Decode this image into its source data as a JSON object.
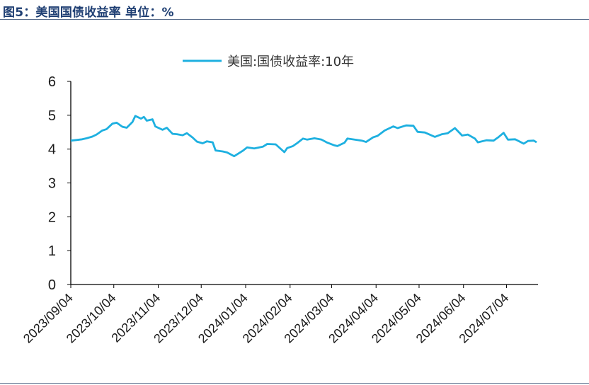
{
  "figure": {
    "title": "图5：美国国债收益率  单位：%"
  },
  "chart_data": {
    "type": "line",
    "title": "",
    "xlabel": "",
    "ylabel": "",
    "ylim": [
      0,
      6
    ],
    "yticks": [
      "0",
      "1",
      "2",
      "3",
      "4",
      "5",
      "6"
    ],
    "xlim": [
      "2023-09-04",
      "2024-07-26"
    ],
    "xtick_labels": [
      "2023/09/04",
      "2023/10/04",
      "2023/11/04",
      "2023/12/04",
      "2024/01/04",
      "2024/02/04",
      "2024/03/04",
      "2024/04/04",
      "2024/05/04",
      "2024/06/04",
      "2024/07/04"
    ],
    "xtick_dates": [
      "2023-09-04",
      "2023-10-04",
      "2023-11-04",
      "2023-12-04",
      "2024-01-04",
      "2024-02-04",
      "2024-03-04",
      "2024-04-04",
      "2024-05-04",
      "2024-06-04",
      "2024-07-04"
    ],
    "grid": false,
    "legend": "top-center",
    "series": [
      {
        "name": "美国:国债收益率:10年",
        "color": "#1eb0e0",
        "points": [
          [
            "2023-09-04",
            4.25
          ],
          [
            "2023-09-08",
            4.27
          ],
          [
            "2023-09-12",
            4.29
          ],
          [
            "2023-09-15",
            4.32
          ],
          [
            "2023-09-19",
            4.37
          ],
          [
            "2023-09-22",
            4.43
          ],
          [
            "2023-09-26",
            4.55
          ],
          [
            "2023-09-29",
            4.59
          ],
          [
            "2023-10-03",
            4.75
          ],
          [
            "2023-10-06",
            4.78
          ],
          [
            "2023-10-10",
            4.66
          ],
          [
            "2023-10-13",
            4.63
          ],
          [
            "2023-10-17",
            4.8
          ],
          [
            "2023-10-19",
            4.98
          ],
          [
            "2023-10-23",
            4.9
          ],
          [
            "2023-10-25",
            4.95
          ],
          [
            "2023-10-27",
            4.84
          ],
          [
            "2023-10-31",
            4.88
          ],
          [
            "2023-11-02",
            4.67
          ],
          [
            "2023-11-07",
            4.57
          ],
          [
            "2023-11-10",
            4.63
          ],
          [
            "2023-11-14",
            4.45
          ],
          [
            "2023-11-17",
            4.44
          ],
          [
            "2023-11-21",
            4.41
          ],
          [
            "2023-11-24",
            4.47
          ],
          [
            "2023-11-28",
            4.34
          ],
          [
            "2023-12-01",
            4.22
          ],
          [
            "2023-12-05",
            4.17
          ],
          [
            "2023-12-08",
            4.23
          ],
          [
            "2023-12-12",
            4.2
          ],
          [
            "2023-12-14",
            3.96
          ],
          [
            "2023-12-19",
            3.93
          ],
          [
            "2023-12-22",
            3.9
          ],
          [
            "2023-12-27",
            3.79
          ],
          [
            "2024-01-02",
            3.95
          ],
          [
            "2024-01-05",
            4.05
          ],
          [
            "2024-01-10",
            4.02
          ],
          [
            "2024-01-16",
            4.07
          ],
          [
            "2024-01-19",
            4.15
          ],
          [
            "2024-01-25",
            4.14
          ],
          [
            "2024-01-31",
            3.91
          ],
          [
            "2024-02-02",
            4.03
          ],
          [
            "2024-02-06",
            4.09
          ],
          [
            "2024-02-09",
            4.18
          ],
          [
            "2024-02-13",
            4.31
          ],
          [
            "2024-02-16",
            4.28
          ],
          [
            "2024-02-21",
            4.32
          ],
          [
            "2024-02-26",
            4.28
          ],
          [
            "2024-03-01",
            4.19
          ],
          [
            "2024-03-06",
            4.11
          ],
          [
            "2024-03-08",
            4.09
          ],
          [
            "2024-03-13",
            4.19
          ],
          [
            "2024-03-15",
            4.31
          ],
          [
            "2024-03-20",
            4.28
          ],
          [
            "2024-03-25",
            4.25
          ],
          [
            "2024-03-28",
            4.21
          ],
          [
            "2024-04-02",
            4.35
          ],
          [
            "2024-04-05",
            4.39
          ],
          [
            "2024-04-10",
            4.55
          ],
          [
            "2024-04-16",
            4.67
          ],
          [
            "2024-04-19",
            4.62
          ],
          [
            "2024-04-25",
            4.7
          ],
          [
            "2024-04-30",
            4.69
          ],
          [
            "2024-05-03",
            4.51
          ],
          [
            "2024-05-08",
            4.49
          ],
          [
            "2024-05-15",
            4.36
          ],
          [
            "2024-05-20",
            4.44
          ],
          [
            "2024-05-24",
            4.47
          ],
          [
            "2024-05-29",
            4.62
          ],
          [
            "2024-06-03",
            4.4
          ],
          [
            "2024-06-07",
            4.43
          ],
          [
            "2024-06-12",
            4.31
          ],
          [
            "2024-06-14",
            4.2
          ],
          [
            "2024-06-20",
            4.26
          ],
          [
            "2024-06-25",
            4.25
          ],
          [
            "2024-06-28",
            4.34
          ],
          [
            "2024-07-02",
            4.48
          ],
          [
            "2024-07-05",
            4.28
          ],
          [
            "2024-07-10",
            4.29
          ],
          [
            "2024-07-16",
            4.16
          ],
          [
            "2024-07-19",
            4.24
          ],
          [
            "2024-07-23",
            4.25
          ],
          [
            "2024-07-25",
            4.2
          ]
        ]
      }
    ]
  }
}
